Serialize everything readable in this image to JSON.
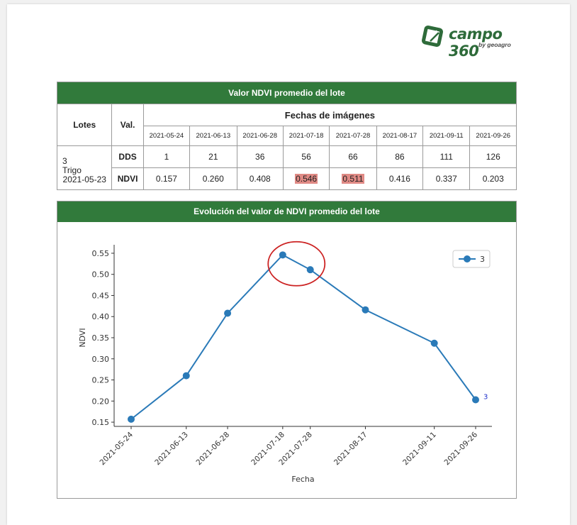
{
  "logo": {
    "brand": "campo 360",
    "sub": "by geoagro",
    "color": "#2e6b3a"
  },
  "table": {
    "title": "Valor NDVI promedio del lote",
    "col_lotes": "Lotes",
    "col_val": "Val.",
    "fechas_header": "Fechas de imágenes",
    "dates": [
      "2021-05-24",
      "2021-06-13",
      "2021-06-28",
      "2021-07-18",
      "2021-07-28",
      "2021-08-17",
      "2021-09-11",
      "2021-09-26"
    ],
    "lote": {
      "id": "3",
      "crop": "Trigo",
      "date": "2021-05-23"
    },
    "dds_label": "DDS",
    "dds": [
      "1",
      "21",
      "36",
      "56",
      "66",
      "86",
      "111",
      "126"
    ],
    "ndvi_label": "NDVI",
    "ndvi": [
      "0.157",
      "0.260",
      "0.408",
      "0.546",
      "0.511",
      "0.416",
      "0.337",
      "0.203"
    ],
    "highlight_color": "#e08a85"
  },
  "chart": {
    "title": "Evolución del valor de NDVI promedio del lote",
    "header_color": "#317a3b"
  },
  "chart_data": {
    "type": "line",
    "x": [
      "2021-05-24",
      "2021-06-13",
      "2021-06-28",
      "2021-07-18",
      "2021-07-28",
      "2021-08-17",
      "2021-09-11",
      "2021-09-26"
    ],
    "series": [
      {
        "name": "3",
        "values": [
          0.157,
          0.26,
          0.408,
          0.546,
          0.511,
          0.416,
          0.337,
          0.203
        ],
        "color": "#2a7ab8"
      }
    ],
    "end_label": "3",
    "xlabel": "Fecha",
    "ylabel": "NDVI",
    "yticks": [
      "0.15",
      "0.20",
      "0.25",
      "0.30",
      "0.35",
      "0.40",
      "0.45",
      "0.50",
      "0.55"
    ],
    "ylim": [
      0.14,
      0.56
    ],
    "legend": "top-right",
    "annotation": {
      "type": "circle",
      "around": [
        "2021-07-18",
        "2021-07-28"
      ],
      "color": "#cc2222"
    }
  }
}
